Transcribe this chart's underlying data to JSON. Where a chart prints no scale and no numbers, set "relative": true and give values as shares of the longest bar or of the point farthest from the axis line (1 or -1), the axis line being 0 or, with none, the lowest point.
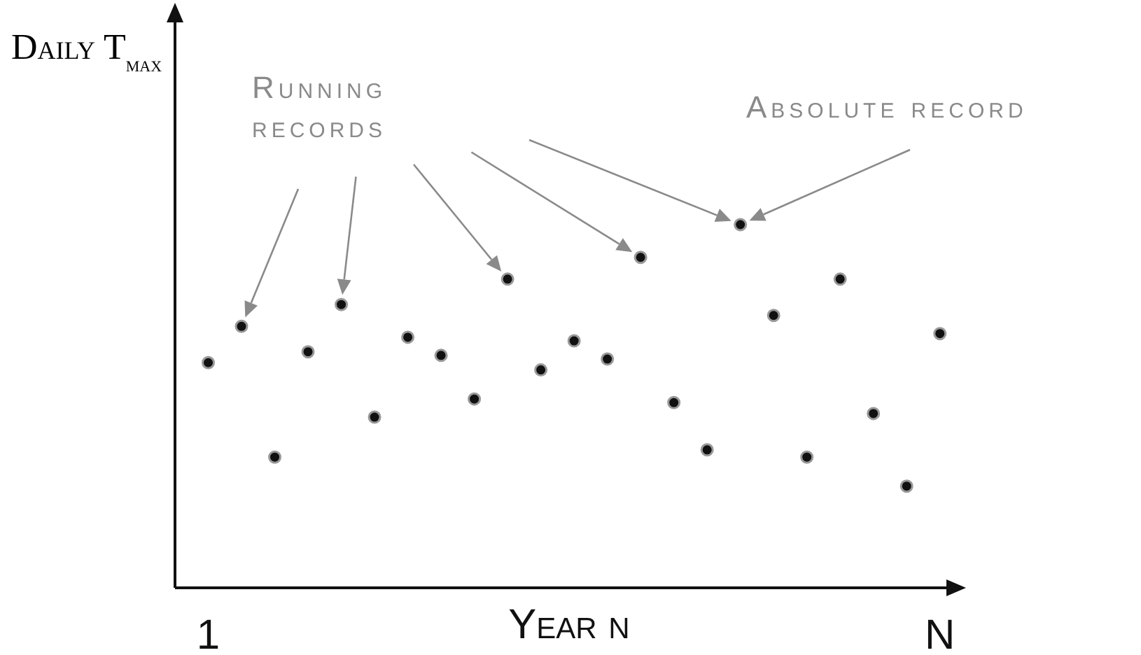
{
  "chart_data": {
    "type": "scatter",
    "relative": true,
    "xlabel": "Year n",
    "ylabel": "Daily T$_{max}$",
    "categories": [
      "1",
      null,
      null,
      null,
      null,
      null,
      null,
      null,
      null,
      null,
      null,
      null,
      null,
      null,
      null,
      null,
      null,
      null,
      null,
      null,
      null,
      null,
      "N"
    ],
    "values": [
      0.62,
      0.72,
      0.36,
      0.65,
      0.78,
      0.47,
      0.69,
      0.64,
      0.52,
      0.85,
      0.6,
      0.68,
      0.63,
      0.91,
      0.51,
      0.38,
      1,
      0.75,
      0.36,
      0.85,
      0.48,
      0.28,
      0.7
    ],
    "color": "#111111",
    "marker": "circle",
    "annotations": [
      "Running records",
      "Absolute record"
    ]
  }
}
